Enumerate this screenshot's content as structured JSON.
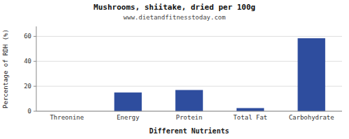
{
  "chart_data": {
    "type": "bar",
    "title": "Mushrooms, shiitake, dried per 100g",
    "subtitle": "www.dietandfitnesstoday.com",
    "xlabel": "Different Nutrients",
    "ylabel": "Percentage of RDH (%)",
    "categories": [
      "Threonine",
      "Energy",
      "Protein",
      "Total Fat",
      "Carbohydrate"
    ],
    "values": [
      0,
      15,
      17,
      2.5,
      58.5
    ],
    "color": "#2e4d9e",
    "ylim": [
      0,
      68
    ],
    "yticks": [
      0,
      20,
      40,
      60
    ],
    "grid": true
  }
}
